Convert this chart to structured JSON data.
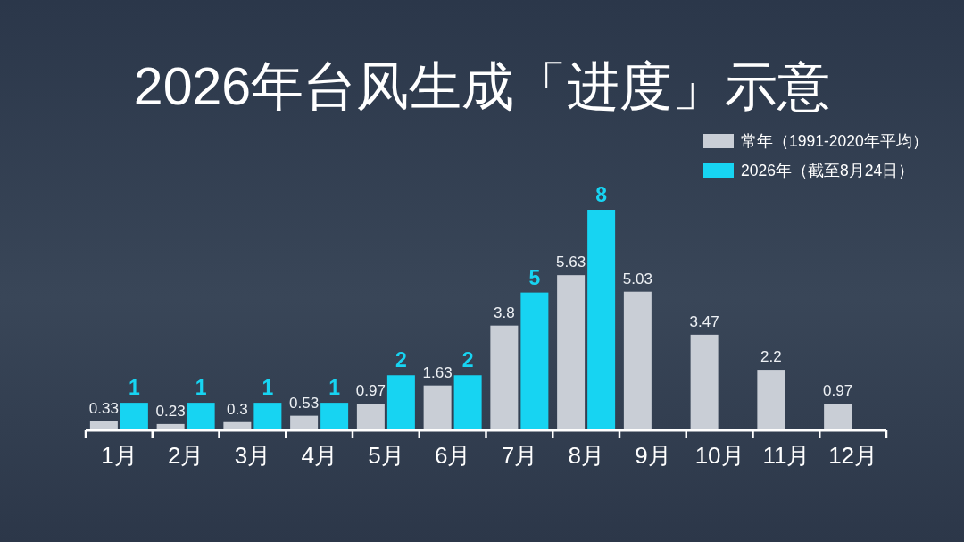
{
  "chart_data": {
    "type": "bar",
    "title": "2026年台风生成「进度」示意",
    "categories": [
      "1月",
      "2月",
      "3月",
      "4月",
      "5月",
      "6月",
      "7月",
      "8月",
      "9月",
      "10月",
      "11月",
      "12月"
    ],
    "series": [
      {
        "name": "常年（1991-2020年平均）",
        "color": "#c9ced6",
        "values": [
          0.33,
          0.23,
          0.3,
          0.53,
          0.97,
          1.63,
          3.8,
          5.63,
          5.03,
          3.47,
          2.2,
          0.97
        ]
      },
      {
        "name": "2026年（截至8月24日）",
        "color": "#17d4f2",
        "values": [
          1,
          1,
          1,
          1,
          2,
          2,
          5,
          8,
          null,
          null,
          null,
          null
        ]
      }
    ],
    "data_labels": true,
    "legend": "top right"
  }
}
